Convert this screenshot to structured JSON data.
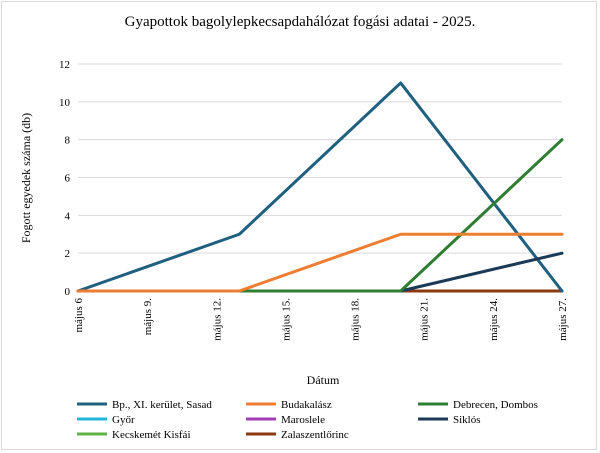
{
  "chart_data": {
    "type": "line",
    "title": "Gyapottok bagolylepkecsapdahálózat fogási adatai - 2025.",
    "xlabel": "Dátum",
    "ylabel": "Fogott egyedek száma (db)",
    "x_ticks": [
      "május 6",
      "május 9.",
      "május 12.",
      "május 15.",
      "május 18.",
      "május 21.",
      "május 24.",
      "május 27."
    ],
    "x_range": [
      6,
      27
    ],
    "ylim": [
      0,
      12
    ],
    "y_ticks": [
      0,
      2,
      4,
      6,
      8,
      10,
      12
    ],
    "grid": true,
    "legend_position": "bottom",
    "series": [
      {
        "name": "Bp., XI. kerület, Sasad",
        "color": "#1f5f7f",
        "x": [
          6,
          13,
          20,
          27
        ],
        "values": [
          0,
          3,
          11,
          0
        ]
      },
      {
        "name": "Budakalász",
        "color": "#ed7d31",
        "x": [
          6,
          13,
          20,
          27
        ],
        "values": [
          0,
          0,
          3,
          3
        ]
      },
      {
        "name": "Debrecen, Dombos",
        "color": "#2e7d32",
        "x": [
          6,
          13,
          20,
          27
        ],
        "values": [
          0,
          0,
          0,
          8
        ]
      },
      {
        "name": "Győr",
        "color": "#1fb5d8",
        "x": [
          6,
          13,
          20,
          27
        ],
        "values": [
          0,
          0,
          0,
          0
        ]
      },
      {
        "name": "Maroslele",
        "color": "#a03db5",
        "x": [
          6,
          13,
          20,
          27
        ],
        "values": [
          0,
          0,
          0,
          0
        ]
      },
      {
        "name": "Siklós",
        "color": "#1b3a57",
        "x": [
          6,
          13,
          20,
          27
        ],
        "values": [
          0,
          0,
          0,
          2
        ]
      },
      {
        "name": "Kecskemét Kisfái",
        "color": "#5fb244",
        "x": [
          6,
          13,
          20,
          27
        ],
        "values": [
          0,
          0,
          0,
          0
        ]
      },
      {
        "name": "Zalaszentlőrinc",
        "color": "#8b3a0f",
        "x": [
          6,
          13,
          20,
          27
        ],
        "values": [
          0,
          0,
          0,
          0
        ]
      }
    ],
    "draw_order": [
      3,
      4,
      6,
      7,
      0,
      5,
      2,
      1
    ]
  }
}
